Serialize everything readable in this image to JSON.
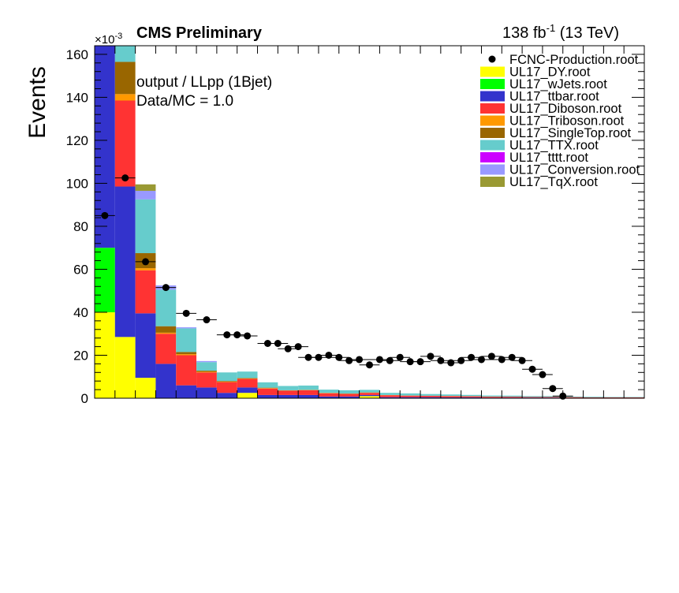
{
  "header": {
    "experiment": "CMS Preliminary",
    "lumi": "138 fb",
    "lumi_exp": "-1",
    "energy": "(13 TeV)",
    "multiplier_base": "×10",
    "multiplier_exp": "-3"
  },
  "annotations": {
    "line1": "output / LLpp (1Bjet)",
    "line2": "Data/MC = 1.0"
  },
  "chart_data": {
    "type": "bar",
    "stacked": true,
    "xlabel": "",
    "ylabel": "Events",
    "ylim": [
      0,
      164
    ],
    "nbins": 27,
    "yticks": [
      0,
      20,
      40,
      60,
      80,
      100,
      120,
      140,
      160
    ],
    "legend_position": "top-right",
    "series": [
      {
        "name": "UL17_DY.root",
        "color": "#ffff00",
        "values": [
          40,
          28.5,
          9.5,
          0,
          0,
          0,
          0,
          2.5,
          0,
          0,
          0,
          0,
          0,
          1,
          0,
          0,
          0,
          0,
          0,
          0,
          0,
          0,
          0,
          0,
          0,
          0,
          0
        ]
      },
      {
        "name": "UL17_wJets.root",
        "color": "#00ff00",
        "values": [
          30,
          0,
          0,
          0,
          0,
          0,
          0,
          0,
          0,
          0,
          0,
          0,
          0,
          0,
          0,
          0,
          0,
          0,
          0,
          0,
          0,
          0,
          0,
          0,
          0,
          0,
          0
        ]
      },
      {
        "name": "UL17_ttbar.root",
        "color": "#3333cc",
        "values": [
          94,
          70,
          30,
          16,
          6,
          5,
          2.5,
          2.5,
          1.5,
          1.5,
          1.5,
          0.8,
          0.8,
          0.5,
          0.5,
          0.5,
          0.5,
          0.4,
          0.4,
          0.3,
          0.3,
          0.3,
          0.3,
          0.2,
          0.2,
          0.2,
          0.2
        ]
      },
      {
        "name": "UL17_Diboson.root",
        "color": "#ff3333",
        "values": [
          0,
          40,
          20,
          14,
          14,
          7,
          5,
          4,
          3,
          2,
          2.2,
          1.5,
          1.2,
          1,
          0.9,
          0.7,
          0.6,
          0.6,
          0.5,
          0.4,
          0.4,
          0.3,
          0.3,
          0.3,
          0.2,
          0.2,
          0.2
        ]
      },
      {
        "name": "UL17_Triboson.root",
        "color": "#ff9900",
        "values": [
          0,
          3,
          1,
          0.5,
          0.5,
          0.3,
          0.2,
          0.2,
          0.2,
          0.1,
          0.1,
          0.1,
          0.1,
          0.1,
          0.1,
          0.05,
          0.05,
          0.05,
          0.05,
          0.05,
          0,
          0,
          0,
          0,
          0,
          0,
          0
        ]
      },
      {
        "name": "UL17_SingleTop.root",
        "color": "#996600",
        "values": [
          0,
          15,
          7,
          3,
          1,
          0.5,
          0.3,
          0.2,
          0.2,
          0.1,
          0.1,
          0.1,
          0.1,
          0.1,
          0,
          0,
          0,
          0,
          0,
          0,
          0,
          0,
          0,
          0,
          0,
          0,
          0
        ]
      },
      {
        "name": "UL17_TTX.root",
        "color": "#66cccc",
        "values": [
          0,
          8,
          25,
          17,
          11,
          4,
          4,
          3,
          2.5,
          2,
          2,
          1.5,
          1.5,
          1.2,
          1,
          1,
          0.8,
          0.7,
          0.6,
          0.5,
          0.5,
          0.4,
          0.4,
          0.3,
          0.3,
          0.2,
          0.2
        ]
      },
      {
        "name": "UL17_tttt.root",
        "color": "#cc00ff",
        "values": [
          0,
          0,
          0,
          0,
          0,
          0,
          0,
          0,
          0,
          0,
          0,
          0,
          0,
          0,
          0,
          0,
          0,
          0,
          0,
          0,
          0,
          0,
          0,
          0,
          0,
          0,
          0
        ]
      },
      {
        "name": "UL17_Conversion.root",
        "color": "#9999ff",
        "values": [
          0,
          0,
          4,
          2,
          0.5,
          0.5,
          0,
          0,
          0,
          0,
          0,
          0,
          0,
          0,
          0,
          0,
          0,
          0,
          0,
          0,
          0,
          0,
          0,
          0,
          0,
          0,
          0
        ]
      },
      {
        "name": "UL17_TqX.root",
        "color": "#999933",
        "values": [
          0,
          0,
          3,
          0,
          0,
          0,
          0,
          0,
          0,
          0,
          0,
          0,
          0,
          0,
          0,
          0,
          0,
          0,
          0,
          0,
          0,
          0,
          0,
          0,
          0,
          0,
          0
        ]
      }
    ],
    "data_series": {
      "name": "FCNC-Production.root",
      "color": "#000000",
      "points": [
        {
          "bin": 0,
          "y": 85
        },
        {
          "bin": 1,
          "y": 102.5
        },
        {
          "bin": 2,
          "y": 63.5
        },
        {
          "bin": 3,
          "y": 51.5
        },
        {
          "bin": 4,
          "y": 39.5
        },
        {
          "bin": 5,
          "y": 36.5
        },
        {
          "bin": 6,
          "y": 29.5
        },
        {
          "bin": 6.5,
          "y": 29.5
        },
        {
          "bin": 7,
          "y": 29
        },
        {
          "bin": 8,
          "y": 25.5
        },
        {
          "bin": 8.5,
          "y": 25.5
        },
        {
          "bin": 9,
          "y": 23
        },
        {
          "bin": 9.5,
          "y": 24
        },
        {
          "bin": 10,
          "y": 19
        },
        {
          "bin": 10.5,
          "y": 19
        },
        {
          "bin": 11,
          "y": 20
        },
        {
          "bin": 11.5,
          "y": 19
        },
        {
          "bin": 12,
          "y": 17.5
        },
        {
          "bin": 12.5,
          "y": 18
        },
        {
          "bin": 13,
          "y": 15.5
        },
        {
          "bin": 13.5,
          "y": 18
        },
        {
          "bin": 14,
          "y": 17.5
        },
        {
          "bin": 14.5,
          "y": 19
        },
        {
          "bin": 15,
          "y": 17
        },
        {
          "bin": 15.5,
          "y": 17
        },
        {
          "bin": 16,
          "y": 19.5
        },
        {
          "bin": 16.5,
          "y": 17.5
        },
        {
          "bin": 17,
          "y": 16.5
        },
        {
          "bin": 17.5,
          "y": 17.5
        },
        {
          "bin": 18,
          "y": 19
        },
        {
          "bin": 18.5,
          "y": 18
        },
        {
          "bin": 19,
          "y": 19.5
        },
        {
          "bin": 19.5,
          "y": 18
        },
        {
          "bin": 20,
          "y": 19
        },
        {
          "bin": 20.5,
          "y": 17.5
        },
        {
          "bin": 21,
          "y": 13.5
        },
        {
          "bin": 21.5,
          "y": 11
        },
        {
          "bin": 22,
          "y": 4.5
        },
        {
          "bin": 22.5,
          "y": 1
        }
      ]
    }
  }
}
